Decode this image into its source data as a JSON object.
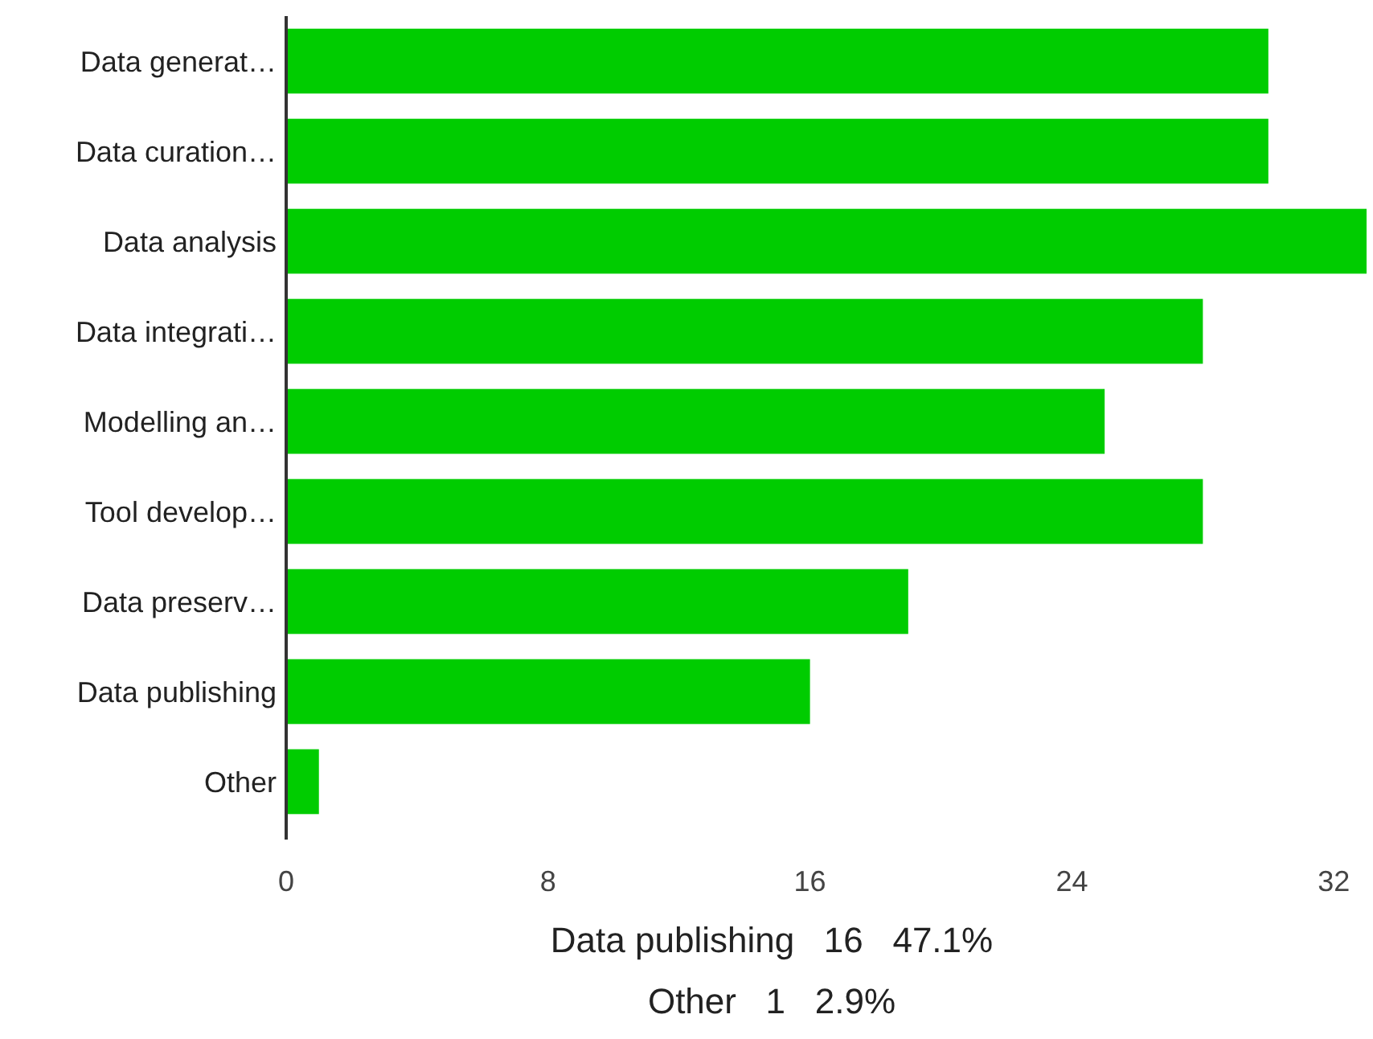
{
  "chart_data": {
    "type": "bar",
    "orientation": "horizontal",
    "categories": [
      "Data generat…",
      "Data curation…",
      "Data analysis",
      "Data integrati…",
      "Modelling an…",
      "Tool develop…",
      "Data preserv…",
      "Data publishing",
      "Other"
    ],
    "values": [
      30,
      30,
      33,
      28,
      25,
      28,
      19,
      16,
      1
    ],
    "color": "#00cc00",
    "xlim": [
      0,
      33
    ],
    "xticks": [
      0,
      8,
      16,
      24,
      32
    ],
    "annotations": [
      "Data publishing   16   47.1%",
      "Other   1   2.9%"
    ]
  }
}
